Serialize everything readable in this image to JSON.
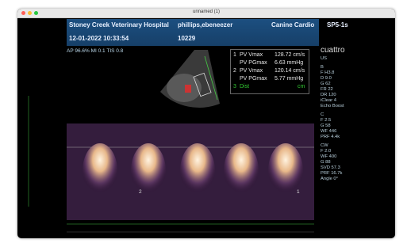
{
  "window": {
    "title": "unnamed (1)"
  },
  "header": {
    "clinic": "Stoney Creek Veterinary Hospital",
    "datetime": "12-01-2022 10:33:54",
    "patient": "phillips,ebeneezer",
    "id": "10229",
    "exam": "Canine Cardio",
    "probe": "SP5-1s"
  },
  "status": "AP 96.6% MI 0.1 TIS 0.8",
  "measurements": [
    {
      "num": "1",
      "label": "PV Vmax",
      "value": "128.72 cm/s"
    },
    {
      "num": "",
      "label": "PV PGmax",
      "value": "6.63 mmHg"
    },
    {
      "num": "2",
      "label": "PV Vmax",
      "value": "120.14 cm/s"
    },
    {
      "num": "",
      "label": "PV PGmax",
      "value": "5.77 mmHg"
    },
    {
      "num": "3",
      "label": "Dist",
      "value": "cm"
    }
  ],
  "brand": "cuattro",
  "settings": [
    "US",
    "B",
    "F H3.8",
    "D 9.0",
    "G 62",
    "FR 22",
    "DR 120",
    "iClear 4",
    "Echo Boost",
    "C",
    "F 2.5",
    "G 58",
    "WF 446",
    "PRF 4.4k",
    "CW",
    "F 2.0",
    "WF 400",
    "G 88",
    "SVD 57.3",
    "PRF 16.7k",
    "Angle 0°"
  ],
  "doppler_markers": [
    "2",
    "1"
  ]
}
